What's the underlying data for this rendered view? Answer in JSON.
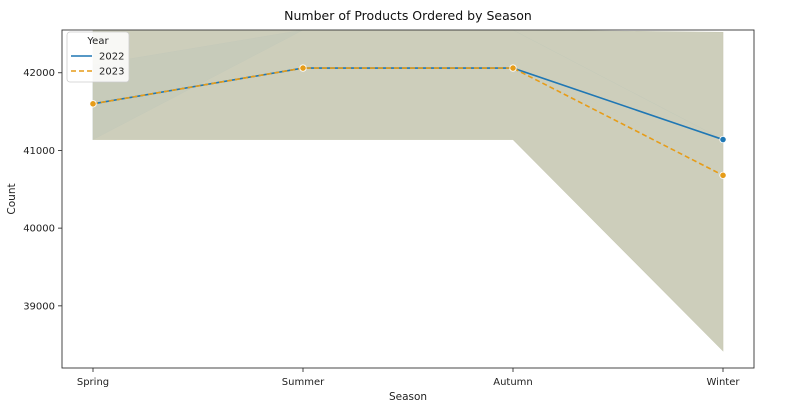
{
  "chart_data": {
    "type": "line",
    "title": "Number of Products Ordered by Season",
    "xlabel": "Season",
    "ylabel": "Count",
    "categories": [
      "Spring",
      "Summer",
      "Autumn",
      "Winter"
    ],
    "ylim": [
      38200,
      42550
    ],
    "yticks": [
      39000,
      40000,
      41000,
      42000
    ],
    "grid": false,
    "legend": {
      "title": "Year",
      "placement": "top-left"
    },
    "series": [
      {
        "name": "2022",
        "color": "#1f77b4",
        "line_style": "solid",
        "values": [
          41600,
          42060,
          42060,
          41140
        ],
        "band": {
          "lower": [
            41140,
            42550,
            42550,
            41140
          ],
          "upper": [
            42100,
            42550,
            42550,
            41140
          ],
          "color": "#aed2ea"
        }
      },
      {
        "name": "2023",
        "color": "#e69c18",
        "line_style": "dashed",
        "values": [
          41600,
          42060,
          42060,
          40680
        ],
        "band": {
          "lower": [
            41140,
            41140,
            41140,
            38420
          ],
          "upper": [
            42550,
            42550,
            42550,
            42520
          ],
          "color": "#c8c9b4"
        }
      }
    ]
  }
}
